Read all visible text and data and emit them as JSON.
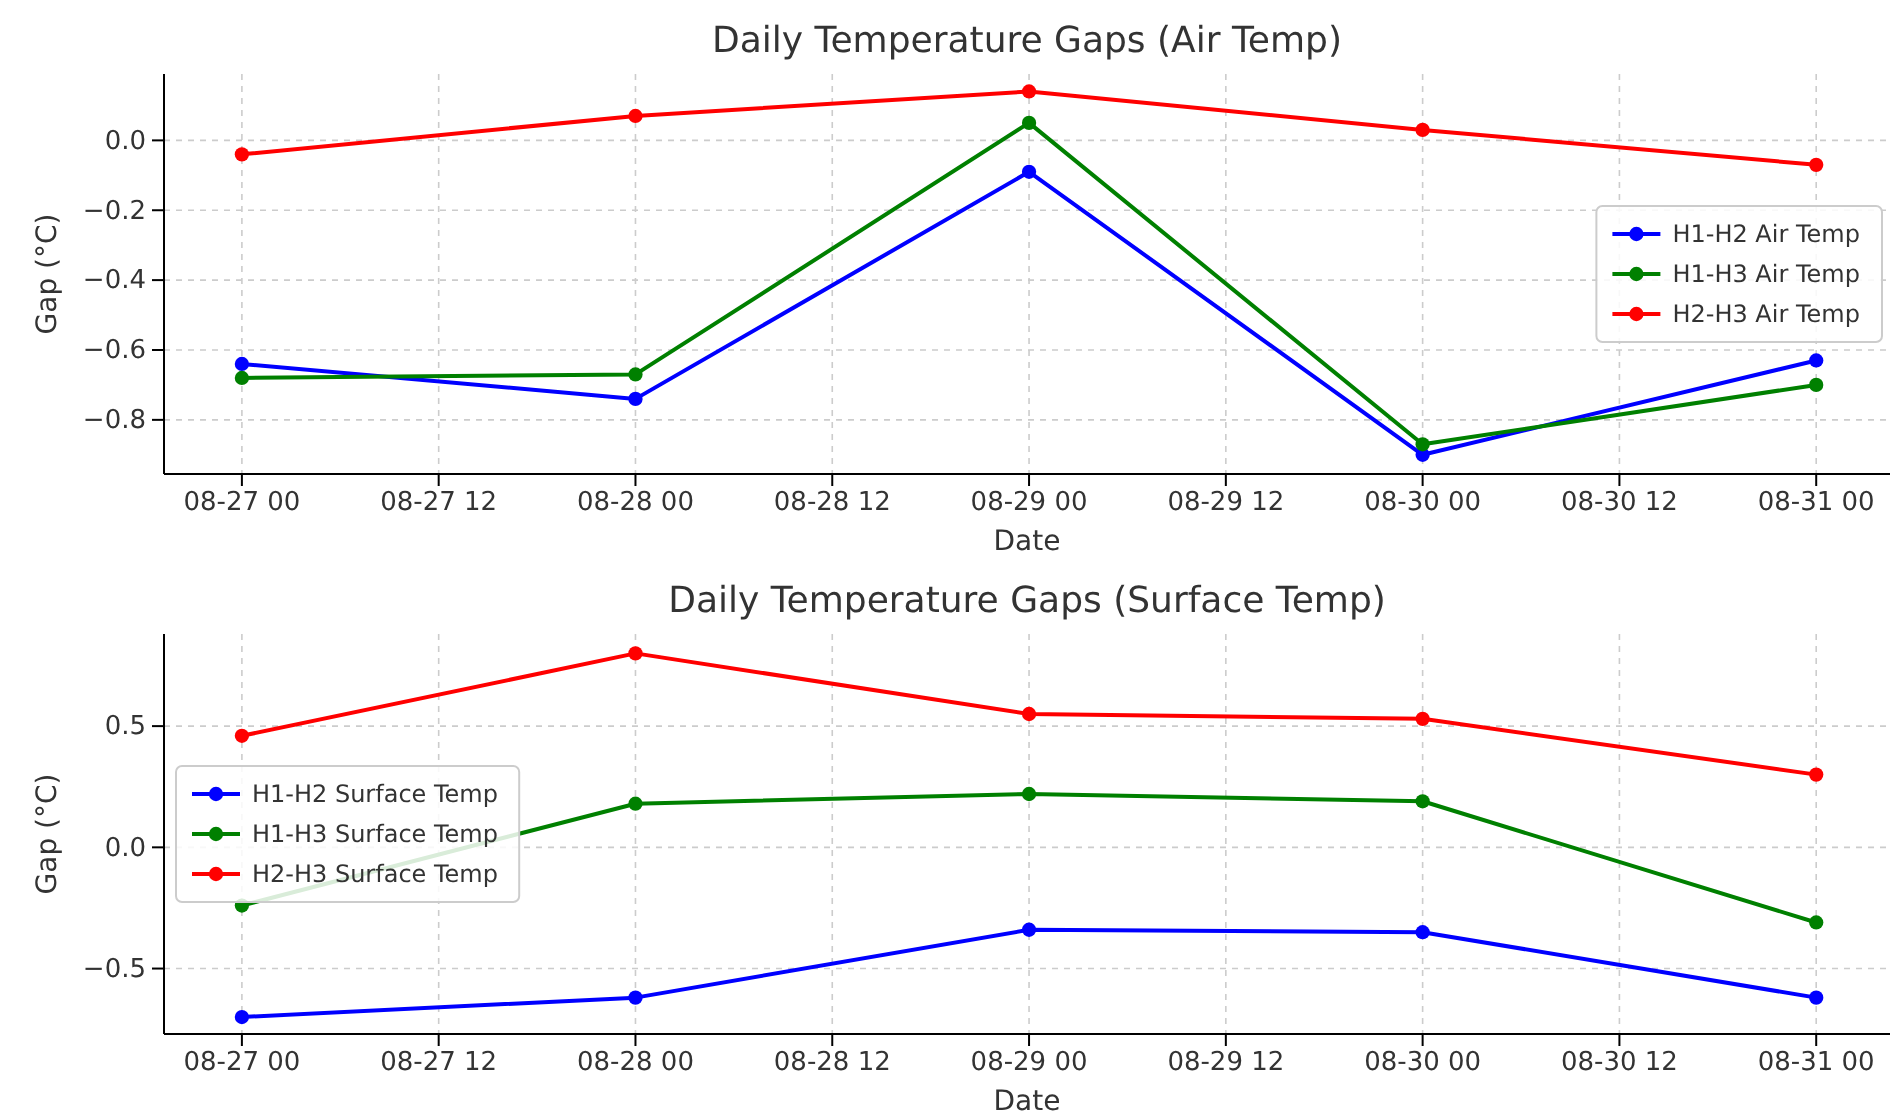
{
  "chart_data": [
    {
      "type": "line",
      "title": "Daily Temperature Gaps (Air Temp)",
      "xlabel": "Date",
      "ylabel": "Gap (°C)",
      "x": [
        "--08-27",
        "--08-28",
        "--08-29",
        "--08-30",
        "--08-31"
      ],
      "series": [
        {
          "name": "H1-H2 Air Temp",
          "color": "#0000ff",
          "values": [
            -0.64,
            -0.74,
            -0.09,
            -0.9,
            -0.63
          ]
        },
        {
          "name": "H1-H3 Air Temp",
          "color": "#008000",
          "values": [
            -0.68,
            -0.67,
            0.05,
            -0.87,
            -0.7
          ]
        },
        {
          "name": "H2-H3 Air Temp",
          "color": "#ff0000",
          "values": [
            -0.04,
            0.07,
            0.14,
            0.03,
            -0.07
          ]
        }
      ],
      "xlim": [
        "--08-26T19:15",
        "--08-31T04:30"
      ],
      "xticks": [
        {
          "value": "--08-27T00:00",
          "label": "08-27 00"
        },
        {
          "value": "--08-27T12:00",
          "label": "08-27 12"
        },
        {
          "value": "--08-28T00:00",
          "label": "08-28 00"
        },
        {
          "value": "--08-28T12:00",
          "label": "08-28 12"
        },
        {
          "value": "--08-29T00:00",
          "label": "08-29 00"
        },
        {
          "value": "--08-29T12:00",
          "label": "08-29 12"
        },
        {
          "value": "--08-30T00:00",
          "label": "08-30 00"
        },
        {
          "value": "--08-30T12:00",
          "label": "08-30 12"
        },
        {
          "value": "--08-31T00:00",
          "label": "08-31 00"
        }
      ],
      "ylim": [
        -0.955,
        0.19
      ],
      "yticks": [
        {
          "value": -0.8,
          "label": "−0.8"
        },
        {
          "value": -0.6,
          "label": "−0.6"
        },
        {
          "value": -0.4,
          "label": "−0.4"
        },
        {
          "value": -0.2,
          "label": "−0.2"
        },
        {
          "value": 0,
          "label": "0.0"
        }
      ],
      "grid": true,
      "legend": "right",
      "marker": "circle",
      "line_style": "solid"
    },
    {
      "type": "line",
      "title": "Daily Temperature Gaps (Surface Temp)",
      "xlabel": "Date",
      "ylabel": "Gap (°C)",
      "x": [
        "--08-27",
        "--08-28",
        "--08-29",
        "--08-30",
        "--08-31"
      ],
      "series": [
        {
          "name": "H1-H2 Surface Temp",
          "color": "#0000ff",
          "values": [
            -0.7,
            -0.62,
            -0.34,
            -0.35,
            -0.62
          ]
        },
        {
          "name": "H1-H3 Surface Temp",
          "color": "#008000",
          "values": [
            -0.24,
            0.18,
            0.22,
            0.19,
            -0.31
          ]
        },
        {
          "name": "H2-H3 Surface Temp",
          "color": "#ff0000",
          "values": [
            0.46,
            0.8,
            0.55,
            0.53,
            0.3
          ]
        }
      ],
      "xlim": [
        "--08-26T19:15",
        "--08-31T04:30"
      ],
      "xticks": [
        {
          "value": "--08-27T00:00",
          "label": "08-27 00"
        },
        {
          "value": "--08-27T12:00",
          "label": "08-27 12"
        },
        {
          "value": "--08-28T00:00",
          "label": "08-28 00"
        },
        {
          "value": "--08-28T12:00",
          "label": "08-28 12"
        },
        {
          "value": "--08-29T00:00",
          "label": "08-29 00"
        },
        {
          "value": "--08-29T12:00",
          "label": "08-29 12"
        },
        {
          "value": "--08-30T00:00",
          "label": "08-30 00"
        },
        {
          "value": "--08-30T12:00",
          "label": "08-30 12"
        },
        {
          "value": "--08-31T00:00",
          "label": "08-31 00"
        }
      ],
      "ylim": [
        -0.77,
        0.88
      ],
      "yticks": [
        {
          "value": -0.5,
          "label": "−0.5"
        },
        {
          "value": 0,
          "label": "0.0"
        },
        {
          "value": 0.5,
          "label": "0.5"
        }
      ],
      "grid": true,
      "legend": "left",
      "marker": "circle",
      "line_style": "solid"
    }
  ]
}
